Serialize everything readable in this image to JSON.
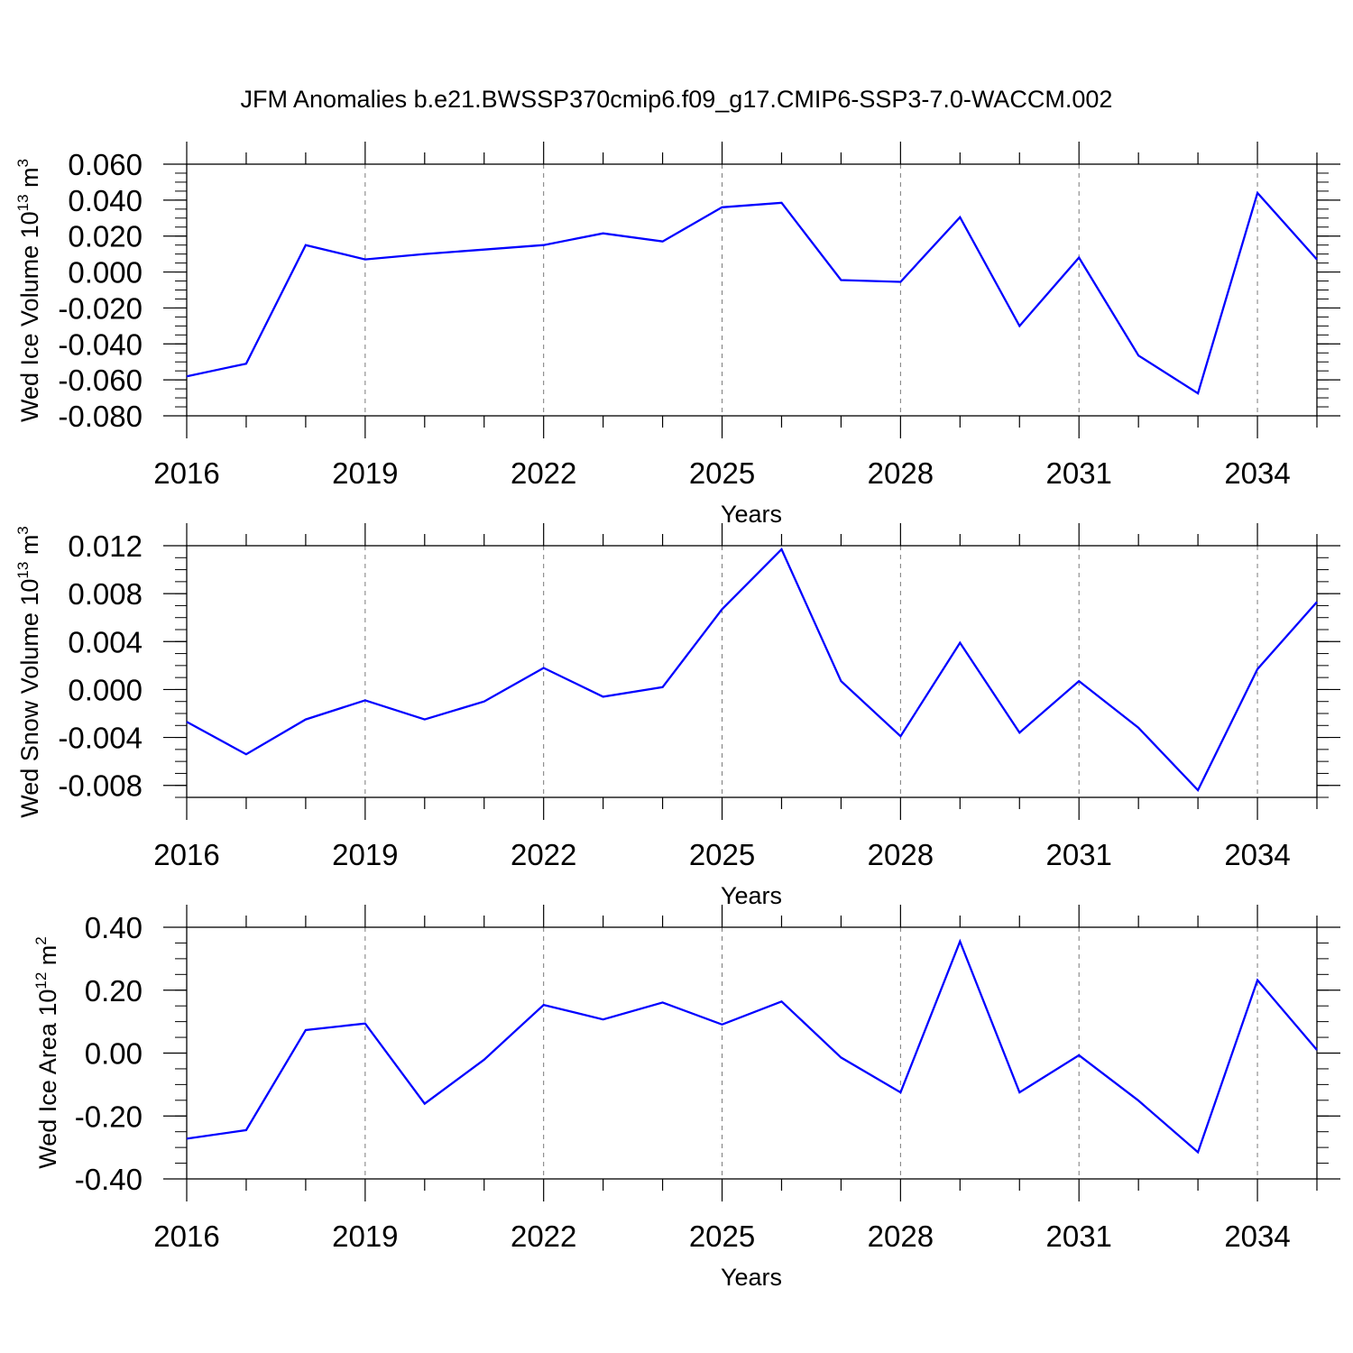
{
  "figure_title": "JFM Anomalies b.e21.BWSSP370cmip6.f09_g17.CMIP6-SSP3-7.0-WACCM.002",
  "line_color": "#0000ff",
  "chart_data": [
    {
      "type": "line",
      "title": "",
      "xlabel": "Years",
      "ylabel_prefix": "Wed Ice Volume 10",
      "ylabel_exp": "13",
      "ylabel_unit": " m",
      "ylabel_unit_exp": "3",
      "xlim": [
        2016,
        2035
      ],
      "ylim": [
        -0.08,
        0.06
      ],
      "x_ticks": [
        2016,
        2019,
        2022,
        2025,
        2028,
        2031,
        2034
      ],
      "x_tick_labels": [
        "2016",
        "2019",
        "2022",
        "2025",
        "2028",
        "2031",
        "2034"
      ],
      "y_ticks": [
        0.06,
        0.04,
        0.02,
        0.0,
        -0.02,
        -0.04,
        -0.06,
        -0.08
      ],
      "y_tick_labels": [
        "0.060",
        "0.040",
        "0.020",
        "0.000",
        "-0.020",
        "-0.040",
        "-0.060",
        "-0.080"
      ],
      "y_minor_step": 0.005,
      "grid": "vertical dashed at labeled years",
      "series": [
        {
          "x": [
            2016,
            2017,
            2018,
            2019,
            2020,
            2021,
            2022,
            2023,
            2024,
            2025,
            2026,
            2027,
            2028,
            2029,
            2030,
            2031,
            2032,
            2033,
            2034,
            2035
          ],
          "values": [
            -0.058,
            -0.051,
            0.015,
            0.007,
            0.01,
            0.0125,
            0.015,
            0.0215,
            0.017,
            0.036,
            0.0385,
            -0.0045,
            -0.0055,
            0.0305,
            -0.03,
            0.008,
            -0.0465,
            -0.0675,
            0.044,
            0.007
          ]
        }
      ]
    },
    {
      "type": "line",
      "title": "",
      "xlabel": "Years",
      "ylabel_prefix": "Wed Snow Volume 10",
      "ylabel_exp": "13",
      "ylabel_unit": " m",
      "ylabel_unit_exp": "3",
      "xlim": [
        2016,
        2035
      ],
      "ylim": [
        -0.009,
        0.012
      ],
      "x_ticks": [
        2016,
        2019,
        2022,
        2025,
        2028,
        2031,
        2034
      ],
      "x_tick_labels": [
        "2016",
        "2019",
        "2022",
        "2025",
        "2028",
        "2031",
        "2034"
      ],
      "y_ticks": [
        0.012,
        0.008,
        0.004,
        0.0,
        -0.004,
        -0.008
      ],
      "y_tick_labels": [
        "0.012",
        "0.008",
        "0.004",
        "0.000",
        "-0.004",
        "-0.008"
      ],
      "y_minor_step": 0.001,
      "grid": "vertical dashed at labeled years",
      "series": [
        {
          "x": [
            2016,
            2017,
            2018,
            2019,
            2020,
            2021,
            2022,
            2023,
            2024,
            2025,
            2026,
            2027,
            2028,
            2029,
            2030,
            2031,
            2032,
            2033,
            2034,
            2035
          ],
          "values": [
            -0.0027,
            -0.0054,
            -0.0025,
            -0.0009,
            -0.0025,
            -0.001,
            0.0018,
            -0.0006,
            0.0002,
            0.0067,
            0.0117,
            0.0007,
            -0.0039,
            0.0039,
            -0.0036,
            0.0007,
            -0.0032,
            -0.0084,
            0.0017,
            0.0073
          ]
        }
      ]
    },
    {
      "type": "line",
      "title": "",
      "xlabel": "Years",
      "ylabel_prefix": "Wed Ice Area 10",
      "ylabel_exp": "12",
      "ylabel_unit": " m",
      "ylabel_unit_exp": "2",
      "xlim": [
        2016,
        2035
      ],
      "ylim": [
        -0.4,
        0.4
      ],
      "x_ticks": [
        2016,
        2019,
        2022,
        2025,
        2028,
        2031,
        2034
      ],
      "x_tick_labels": [
        "2016",
        "2019",
        "2022",
        "2025",
        "2028",
        "2031",
        "2034"
      ],
      "y_ticks": [
        0.4,
        0.2,
        0.0,
        -0.2,
        -0.4
      ],
      "y_tick_labels": [
        "0.40",
        "0.20",
        "0.00",
        "-0.20",
        "-0.40"
      ],
      "y_minor_step": 0.05,
      "grid": "vertical dashed at labeled years",
      "series": [
        {
          "x": [
            2016,
            2017,
            2018,
            2019,
            2020,
            2021,
            2022,
            2023,
            2024,
            2025,
            2026,
            2027,
            2028,
            2029,
            2030,
            2031,
            2032,
            2033,
            2034,
            2035
          ],
          "values": [
            -0.272,
            -0.245,
            0.073,
            0.094,
            -0.161,
            -0.021,
            0.153,
            0.107,
            0.161,
            0.091,
            0.164,
            -0.014,
            -0.125,
            0.355,
            -0.125,
            -0.007,
            -0.151,
            -0.315,
            0.232,
            0.01
          ]
        }
      ]
    }
  ]
}
